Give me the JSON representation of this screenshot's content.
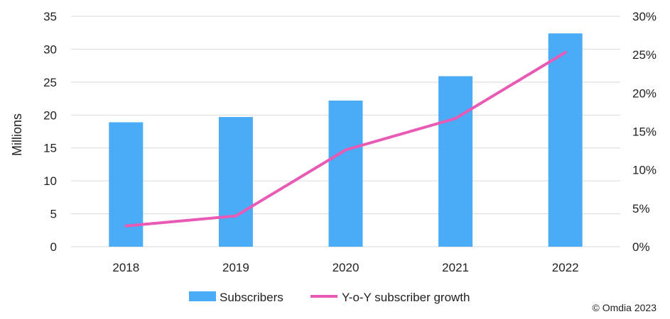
{
  "chart_data": {
    "type": "bar",
    "categories": [
      "2018",
      "2019",
      "2020",
      "2021",
      "2022"
    ],
    "series": [
      {
        "name": "Subscribers",
        "type": "bar",
        "axis": "left",
        "color": "#4AABF7",
        "values": [
          18.9,
          19.7,
          22.2,
          25.9,
          32.4
        ]
      },
      {
        "name": "Y-o-Y subscriber growth",
        "type": "line",
        "axis": "right",
        "color": "#E85AB4",
        "values": [
          2.7,
          4.0,
          12.6,
          16.7,
          25.3
        ]
      }
    ],
    "ylabel": "Millions",
    "ylim": [
      0,
      35
    ],
    "yticks": [
      "0",
      "5",
      "10",
      "15",
      "20",
      "25",
      "30",
      "35"
    ],
    "y2lim": [
      0,
      30
    ],
    "y2ticks": [
      "0%",
      "5%",
      "10%",
      "15%",
      "20%",
      "25%",
      "30%"
    ],
    "grid": true,
    "legend": "bottom-center"
  },
  "footer": {
    "copyright": "© Omdia 2023"
  }
}
